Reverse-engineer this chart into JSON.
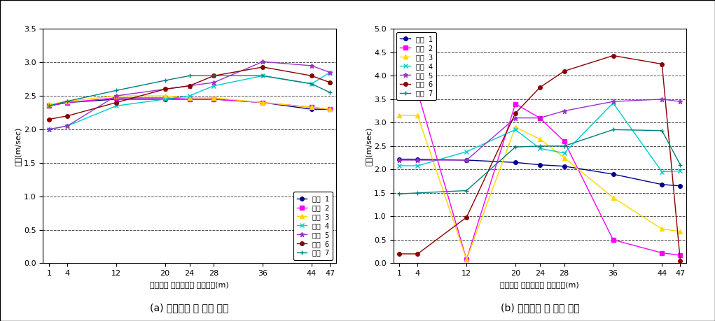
{
  "x_ticks": [
    1,
    4,
    12,
    20,
    24,
    28,
    36,
    44,
    47
  ],
  "xlabel": "좌안에서 우안까지의 누가거리(m)",
  "ylabel": "유속(m/sec)",
  "caption_a": "(a) 수제설치 전 유속 변화",
  "caption_b": "(b) 수제설치 후 유속 변화",
  "legend_labels": [
    "단면  1",
    "단면  2",
    "단면  3",
    "단면  4",
    "단면  5",
    "단면  6",
    "단면  7"
  ],
  "colors": [
    "#00008B",
    "#FF00FF",
    "#FFD700",
    "#00CCCC",
    "#9932CC",
    "#8B0000",
    "#008080"
  ],
  "markers": [
    "o",
    "s",
    "^",
    "x",
    "*",
    "o",
    "+"
  ],
  "chart_a": {
    "ylim": [
      0.0,
      3.5
    ],
    "yticks": [
      0.0,
      0.5,
      1.0,
      1.5,
      2.0,
      2.5,
      3.0,
      3.5
    ],
    "series": [
      [
        2.35,
        2.4,
        2.45,
        2.45,
        2.45,
        2.45,
        2.4,
        2.3,
        2.3
      ],
      [
        2.35,
        2.4,
        2.47,
        2.47,
        2.45,
        2.45,
        2.4,
        2.33,
        2.3
      ],
      [
        2.37,
        2.42,
        2.5,
        2.5,
        2.47,
        2.47,
        2.4,
        2.33,
        2.3
      ],
      [
        2.0,
        2.05,
        2.35,
        2.45,
        2.5,
        2.65,
        2.8,
        2.68,
        2.85
      ],
      [
        2.0,
        2.05,
        2.5,
        2.6,
        2.65,
        2.7,
        3.01,
        2.95,
        2.85
      ],
      [
        2.15,
        2.2,
        2.4,
        2.6,
        2.65,
        2.8,
        2.93,
        2.8,
        2.7
      ],
      [
        2.35,
        2.42,
        2.58,
        2.73,
        2.8,
        2.8,
        2.8,
        2.68,
        2.55
      ]
    ]
  },
  "chart_b": {
    "ylim": [
      0.0,
      5.0
    ],
    "yticks": [
      0.0,
      0.5,
      1.0,
      1.5,
      2.0,
      2.5,
      3.0,
      3.5,
      4.0,
      4.5,
      5.0
    ],
    "series": [
      [
        2.22,
        2.22,
        2.2,
        2.15,
        2.1,
        2.07,
        1.9,
        1.68,
        1.65
      ],
      [
        3.65,
        3.65,
        0.08,
        3.4,
        3.1,
        2.6,
        0.5,
        0.22,
        0.17
      ],
      [
        3.15,
        3.15,
        0.08,
        2.9,
        2.65,
        2.25,
        1.4,
        0.73,
        0.68
      ],
      [
        2.08,
        2.08,
        2.38,
        2.85,
        2.45,
        2.35,
        3.42,
        1.95,
        1.97
      ],
      [
        2.2,
        2.2,
        2.2,
        3.1,
        3.1,
        3.25,
        3.45,
        3.5,
        3.45
      ],
      [
        0.2,
        0.2,
        0.98,
        3.2,
        3.75,
        4.1,
        4.43,
        4.25,
        0.05
      ],
      [
        1.48,
        1.5,
        1.55,
        2.48,
        2.5,
        2.5,
        2.85,
        2.83,
        2.1
      ]
    ]
  }
}
